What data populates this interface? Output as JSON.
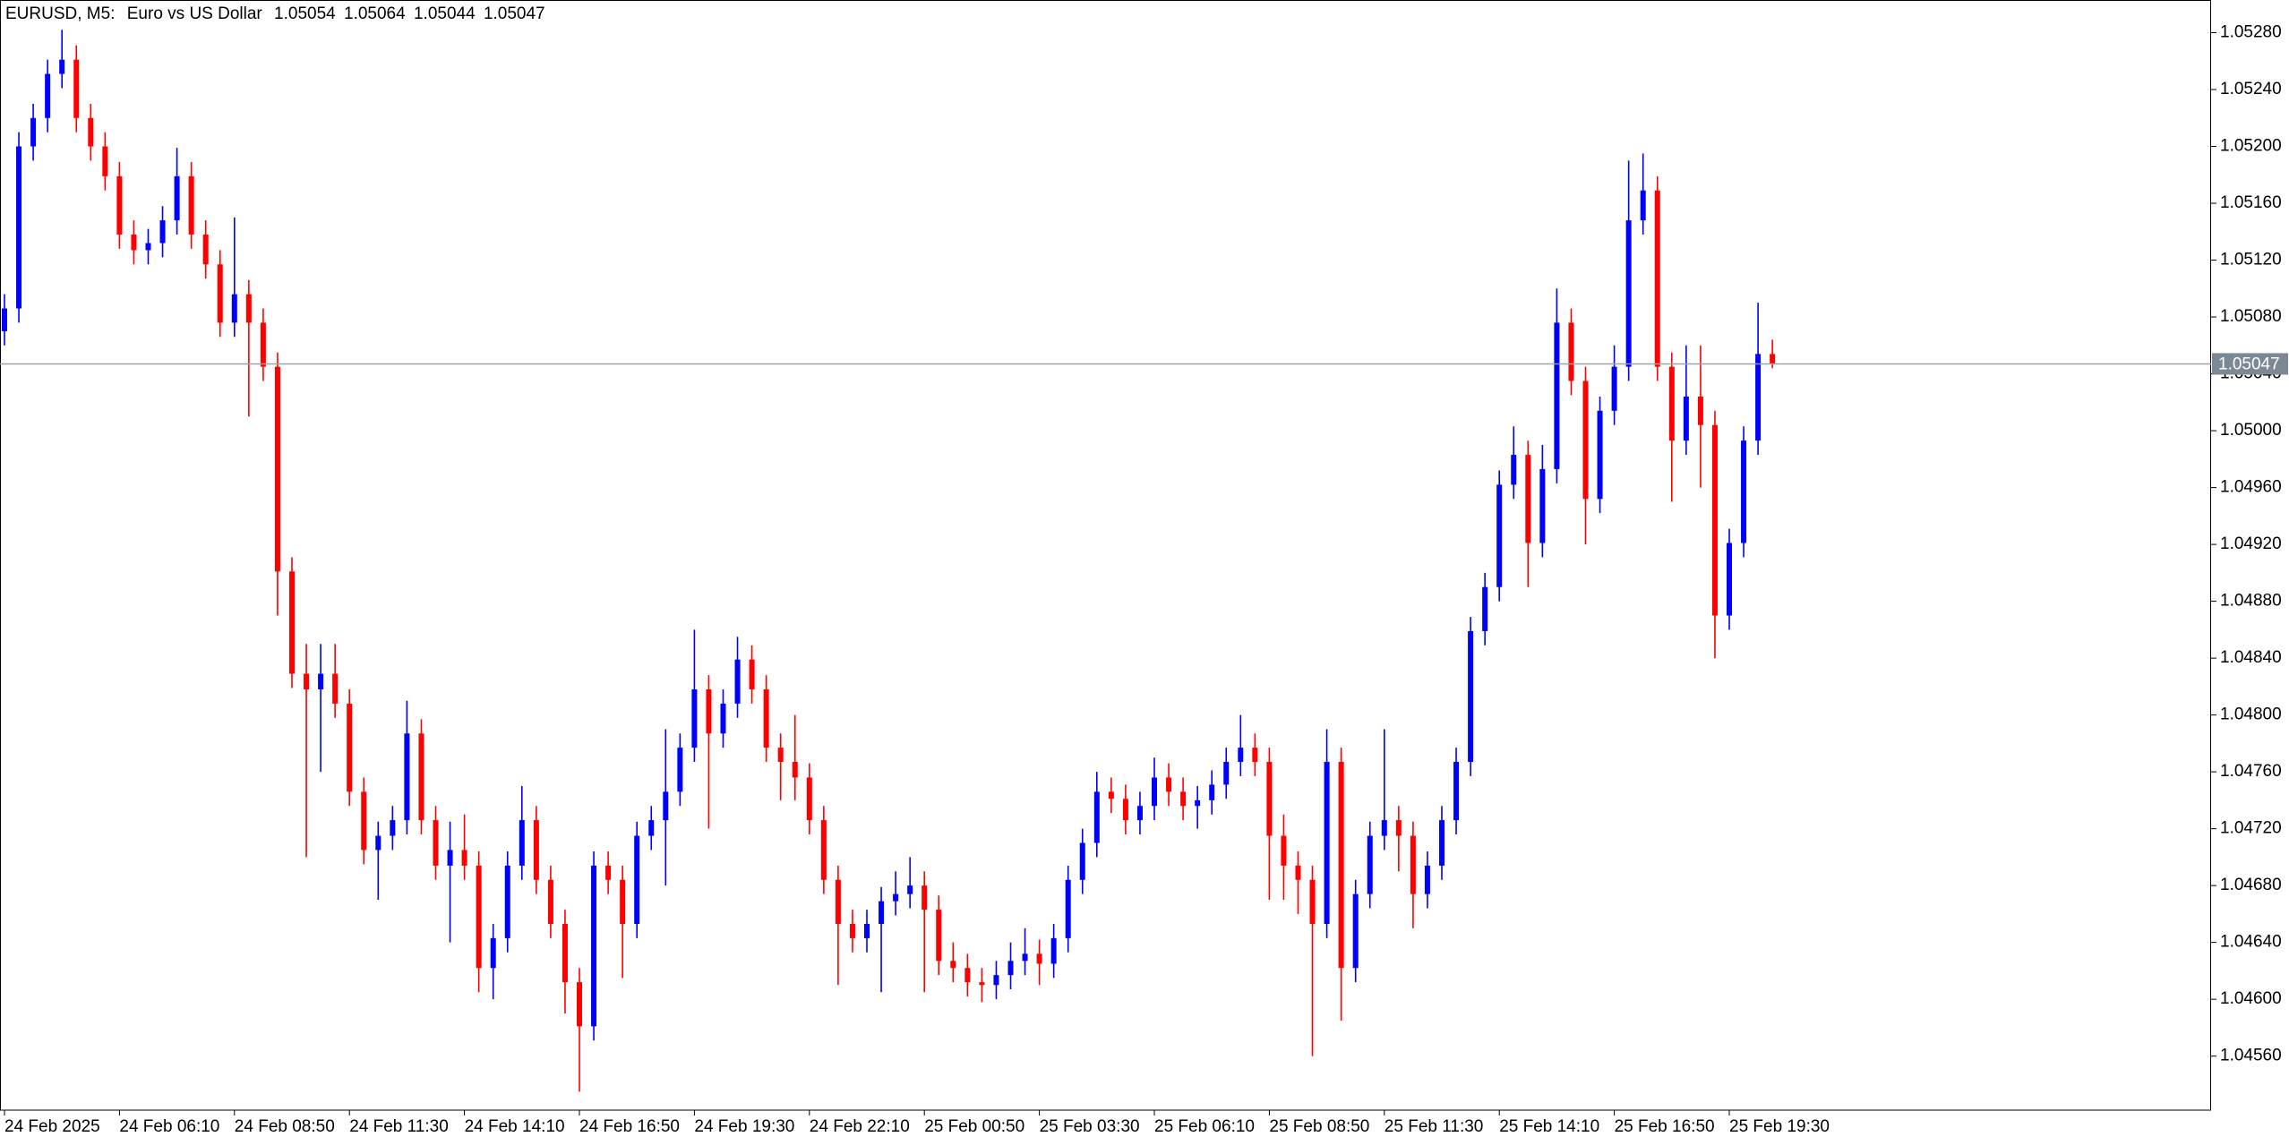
{
  "chart_data": {
    "type": "candlestick",
    "symbol": "EURUSD, M5:",
    "description": "Euro vs US Dollar",
    "up_color": "#0000ff",
    "down_color": "#ff0000",
    "price_line_color": "#9aa3ad",
    "price_label_color": "#7c8894",
    "categories": [
      "24 Feb 2025",
      null,
      null,
      null,
      null,
      null,
      null,
      null,
      "24 Feb 06:10",
      null,
      null,
      null,
      null,
      null,
      null,
      null,
      "24 Feb 08:50",
      null,
      null,
      null,
      null,
      null,
      null,
      null,
      "24 Feb 11:30",
      null,
      null,
      null,
      null,
      null,
      null,
      null,
      "24 Feb 14:10",
      null,
      null,
      null,
      null,
      null,
      null,
      null,
      "24 Feb 16:50",
      null,
      null,
      null,
      null,
      null,
      null,
      null,
      "24 Feb 19:30",
      null,
      null,
      null,
      null,
      null,
      null,
      null,
      "24 Feb 22:10",
      null,
      null,
      null,
      null,
      null,
      null,
      null,
      "25 Feb 00:50",
      null,
      null,
      null,
      null,
      null,
      null,
      null,
      "25 Feb 03:30",
      null,
      null,
      null,
      null,
      null,
      null,
      null,
      "25 Feb 06:10",
      null,
      null,
      null,
      null,
      null,
      null,
      null,
      "25 Feb 08:50",
      null,
      null,
      null,
      null,
      null,
      null,
      null,
      "25 Feb 11:30",
      null,
      null,
      null,
      null,
      null,
      null,
      null,
      "25 Feb 14:10",
      null,
      null,
      null,
      null,
      null,
      null,
      null,
      "25 Feb 16:50",
      null,
      null,
      null,
      null,
      null,
      null,
      null,
      "25 Feb 19:30",
      null,
      null,
      null
    ],
    "open": [
      1.0507,
      1.05086,
      1.052,
      1.0522,
      1.05251,
      1.05261,
      1.0522,
      1.052,
      1.05179,
      1.05138,
      1.05127,
      1.05132,
      1.05148,
      1.05179,
      1.05138,
      1.05117,
      1.05076,
      1.05096,
      1.05076,
      1.05045,
      1.04901,
      1.04829,
      1.04818,
      1.04829,
      1.04808,
      1.04746,
      1.04705,
      1.04715,
      1.04726,
      1.04787,
      1.04726,
      1.04694,
      1.04705,
      1.04694,
      1.04622,
      1.04643,
      1.04694,
      1.04726,
      1.04684,
      1.04653,
      1.04612,
      1.04581,
      1.04694,
      1.04684,
      1.04653,
      1.04715,
      1.04726,
      1.04746,
      1.04777,
      1.04818,
      1.04787,
      1.04808,
      1.04839,
      1.04818,
      1.04777,
      1.04767,
      1.04756,
      1.04726,
      1.04684,
      1.04653,
      1.04643,
      1.04653,
      1.04669,
      1.04674,
      1.0468,
      1.04663,
      1.04627,
      1.04622,
      1.04612,
      1.0461,
      1.04617,
      1.04627,
      1.04632,
      1.04625,
      1.04643,
      1.04684,
      1.0471,
      1.04746,
      1.04741,
      1.04726,
      1.04736,
      1.04756,
      1.04746,
      1.04736,
      1.0474,
      1.04751,
      1.04767,
      1.04777,
      1.04767,
      1.04715,
      1.04694,
      1.04684,
      1.04653,
      1.04767,
      1.04622,
      1.04674,
      1.04715,
      1.04726,
      1.04715,
      1.04674,
      1.04694,
      1.04726,
      1.04767,
      1.04859,
      1.0489,
      1.04962,
      1.04983,
      1.04921,
      1.04973,
      1.05076,
      1.05035,
      1.04952,
      1.05014,
      1.05045,
      1.05148,
      1.05169,
      1.05045,
      1.04993,
      1.05024,
      1.05004,
      1.0487,
      1.04921,
      1.04993,
      1.05054
    ],
    "high": [
      1.05096,
      1.0521,
      1.0523,
      1.05261,
      1.05282,
      1.05271,
      1.0523,
      1.0521,
      1.05189,
      1.05148,
      1.05142,
      1.05158,
      1.05199,
      1.05189,
      1.05148,
      1.05127,
      1.0515,
      1.05106,
      1.05086,
      1.05055,
      1.04911,
      1.0485,
      1.0485,
      1.0485,
      1.04818,
      1.04756,
      1.04725,
      1.04736,
      1.0481,
      1.04797,
      1.04736,
      1.04725,
      1.0473,
      1.04704,
      1.04653,
      1.04704,
      1.0475,
      1.04736,
      1.04694,
      1.04663,
      1.04622,
      1.04704,
      1.04704,
      1.04694,
      1.04725,
      1.04736,
      1.0479,
      1.04787,
      1.0486,
      1.04828,
      1.04818,
      1.04855,
      1.04849,
      1.04828,
      1.04787,
      1.048,
      1.04766,
      1.04736,
      1.04694,
      1.04663,
      1.04663,
      1.04679,
      1.0469,
      1.047,
      1.0469,
      1.04673,
      1.0464,
      1.04632,
      1.04622,
      1.04627,
      1.0464,
      1.0465,
      1.04642,
      1.04653,
      1.04694,
      1.0472,
      1.0476,
      1.04756,
      1.04751,
      1.04746,
      1.0477,
      1.04766,
      1.04756,
      1.0475,
      1.04761,
      1.04777,
      1.048,
      1.04787,
      1.04777,
      1.0473,
      1.04704,
      1.04694,
      1.0479,
      1.04777,
      1.04684,
      1.04725,
      1.0479,
      1.04736,
      1.04725,
      1.04704,
      1.04736,
      1.04777,
      1.04869,
      1.049,
      1.04972,
      1.05003,
      1.04993,
      1.0499,
      1.051,
      1.05086,
      1.05045,
      1.05024,
      1.0506,
      1.0519,
      1.05195,
      1.05179,
      1.05055,
      1.0506,
      1.0506,
      1.05014,
      1.04931,
      1.05003,
      1.0509,
      1.05064
    ],
    "low": [
      1.0506,
      1.05076,
      1.0519,
      1.0521,
      1.05241,
      1.0521,
      1.0519,
      1.05169,
      1.05128,
      1.05117,
      1.05117,
      1.05122,
      1.05138,
      1.05128,
      1.05107,
      1.05066,
      1.05066,
      1.0501,
      1.05035,
      1.0487,
      1.04819,
      1.047,
      1.0476,
      1.04798,
      1.04736,
      1.04695,
      1.0467,
      1.04705,
      1.04716,
      1.04716,
      1.04684,
      1.0464,
      1.04684,
      1.04605,
      1.046,
      1.04633,
      1.04684,
      1.04674,
      1.04643,
      1.0459,
      1.04535,
      1.04571,
      1.04674,
      1.04615,
      1.04643,
      1.04705,
      1.0468,
      1.04736,
      1.04767,
      1.0472,
      1.04777,
      1.04798,
      1.04808,
      1.04767,
      1.0474,
      1.0474,
      1.04716,
      1.04674,
      1.0461,
      1.04633,
      1.04633,
      1.04605,
      1.04659,
      1.04664,
      1.04605,
      1.04617,
      1.04612,
      1.04602,
      1.04598,
      1.046,
      1.04607,
      1.04617,
      1.0461,
      1.04615,
      1.04633,
      1.04674,
      1.047,
      1.04731,
      1.04716,
      1.04716,
      1.04726,
      1.04736,
      1.04726,
      1.0472,
      1.0473,
      1.04741,
      1.04757,
      1.04757,
      1.0467,
      1.0467,
      1.0466,
      1.0456,
      1.04643,
      1.04585,
      1.04612,
      1.04664,
      1.04705,
      1.0469,
      1.0465,
      1.04664,
      1.04684,
      1.04716,
      1.04757,
      1.04849,
      1.0488,
      1.04952,
      1.0489,
      1.04911,
      1.04963,
      1.05025,
      1.0492,
      1.04942,
      1.05004,
      1.05035,
      1.05138,
      1.05035,
      1.0495,
      1.04983,
      1.0496,
      1.0484,
      1.0486,
      1.04911,
      1.04983,
      1.05044
    ],
    "close": [
      1.05086,
      1.052,
      1.0522,
      1.05251,
      1.05261,
      1.0522,
      1.052,
      1.05179,
      1.05138,
      1.05127,
      1.05132,
      1.05148,
      1.05179,
      1.05138,
      1.05117,
      1.05076,
      1.05096,
      1.05076,
      1.05045,
      1.04901,
      1.04829,
      1.04818,
      1.04829,
      1.04808,
      1.04746,
      1.04705,
      1.04715,
      1.04726,
      1.04787,
      1.04726,
      1.04694,
      1.04705,
      1.04694,
      1.04622,
      1.04643,
      1.04694,
      1.04726,
      1.04684,
      1.04653,
      1.04612,
      1.04581,
      1.04694,
      1.04684,
      1.04653,
      1.04715,
      1.04726,
      1.04746,
      1.04777,
      1.04818,
      1.04787,
      1.04808,
      1.04839,
      1.04818,
      1.04777,
      1.04767,
      1.04756,
      1.04726,
      1.04684,
      1.04653,
      1.04643,
      1.04653,
      1.04669,
      1.04674,
      1.0468,
      1.04663,
      1.04627,
      1.04622,
      1.04612,
      1.0461,
      1.04617,
      1.04627,
      1.04632,
      1.04625,
      1.04643,
      1.04684,
      1.0471,
      1.04746,
      1.04741,
      1.04726,
      1.04736,
      1.04756,
      1.04746,
      1.04736,
      1.0474,
      1.04751,
      1.04767,
      1.04777,
      1.04767,
      1.04715,
      1.04694,
      1.04684,
      1.04653,
      1.04767,
      1.04622,
      1.04674,
      1.04715,
      1.04726,
      1.04715,
      1.04674,
      1.04694,
      1.04726,
      1.04767,
      1.04859,
      1.0489,
      1.04962,
      1.04983,
      1.04921,
      1.04973,
      1.05076,
      1.05035,
      1.04952,
      1.05014,
      1.05045,
      1.05148,
      1.05169,
      1.05045,
      1.04993,
      1.05024,
      1.05004,
      1.0487,
      1.04921,
      1.04993,
      1.05054,
      1.05047
    ],
    "ylim": [
      1.04522,
      1.05303
    ],
    "yticks": [
      {
        "value": 1.0456,
        "label": "1.04560"
      },
      {
        "value": 1.046,
        "label": "1.04600"
      },
      {
        "value": 1.0464,
        "label": "1.04640"
      },
      {
        "value": 1.0468,
        "label": "1.04680"
      },
      {
        "value": 1.0472,
        "label": "1.04720"
      },
      {
        "value": 1.0476,
        "label": "1.04760"
      },
      {
        "value": 1.048,
        "label": "1.04800"
      },
      {
        "value": 1.0484,
        "label": "1.04840"
      },
      {
        "value": 1.0488,
        "label": "1.04880"
      },
      {
        "value": 1.0492,
        "label": "1.04920"
      },
      {
        "value": 1.0496,
        "label": "1.04960"
      },
      {
        "value": 1.05,
        "label": "1.05000"
      },
      {
        "value": 1.0504,
        "label": "1.05040"
      },
      {
        "value": 1.0508,
        "label": "1.05080"
      },
      {
        "value": 1.0512,
        "label": "1.05120"
      },
      {
        "value": 1.0516,
        "label": "1.05160"
      },
      {
        "value": 1.052,
        "label": "1.05200"
      },
      {
        "value": 1.0524,
        "label": "1.05240"
      },
      {
        "value": 1.0528,
        "label": "1.05280"
      }
    ]
  }
}
